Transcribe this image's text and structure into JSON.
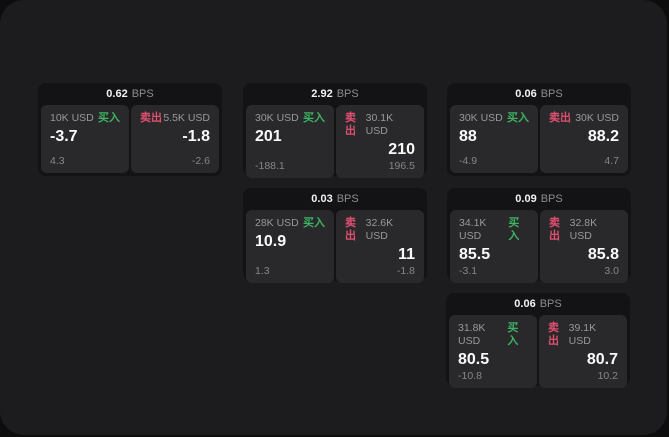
{
  "colors": {
    "buy": "#3db263",
    "sell": "#e14f70"
  },
  "cards": [
    {
      "bps_value": "0.62",
      "bps_unit": "BPS",
      "buy": {
        "amount": "10K USD",
        "label": "买入",
        "main": "-3.7",
        "sub": "4.3"
      },
      "sell": {
        "label": "卖出",
        "amount": "5.5K USD",
        "main": "-1.8",
        "sub": "-2.6"
      }
    },
    {
      "bps_value": "2.92",
      "bps_unit": "BPS",
      "buy": {
        "amount": "30K USD",
        "label": "买入",
        "main": "201",
        "sub": "-188.1"
      },
      "sell": {
        "label": "卖出",
        "amount": "30.1K USD",
        "main": "210",
        "sub": "196.5"
      }
    },
    {
      "bps_value": "0.06",
      "bps_unit": "BPS",
      "buy": {
        "amount": "30K USD",
        "label": "买入",
        "main": "88",
        "sub": "-4.9"
      },
      "sell": {
        "label": "卖出",
        "amount": "30K USD",
        "main": "88.2",
        "sub": "4.7"
      }
    },
    {
      "bps_value": "0.03",
      "bps_unit": "BPS",
      "buy": {
        "amount": "28K USD",
        "label": "买入",
        "main": "10.9",
        "sub": "1.3"
      },
      "sell": {
        "label": "卖出",
        "amount": "32.6K USD",
        "main": "11",
        "sub": "-1.8"
      }
    },
    {
      "bps_value": "0.09",
      "bps_unit": "BPS",
      "buy": {
        "amount": "34.1K USD",
        "label": "买入",
        "main": "85.5",
        "sub": "-3.1"
      },
      "sell": {
        "label": "卖出",
        "amount": "32.8K USD",
        "main": "85.8",
        "sub": "3.0"
      }
    },
    {
      "bps_value": "0.06",
      "bps_unit": "BPS",
      "buy": {
        "amount": "31.8K USD",
        "label": "买入",
        "main": "80.5",
        "sub": "-10.8"
      },
      "sell": {
        "label": "卖出",
        "amount": "39.1K USD",
        "main": "80.7",
        "sub": "10.2"
      }
    }
  ]
}
